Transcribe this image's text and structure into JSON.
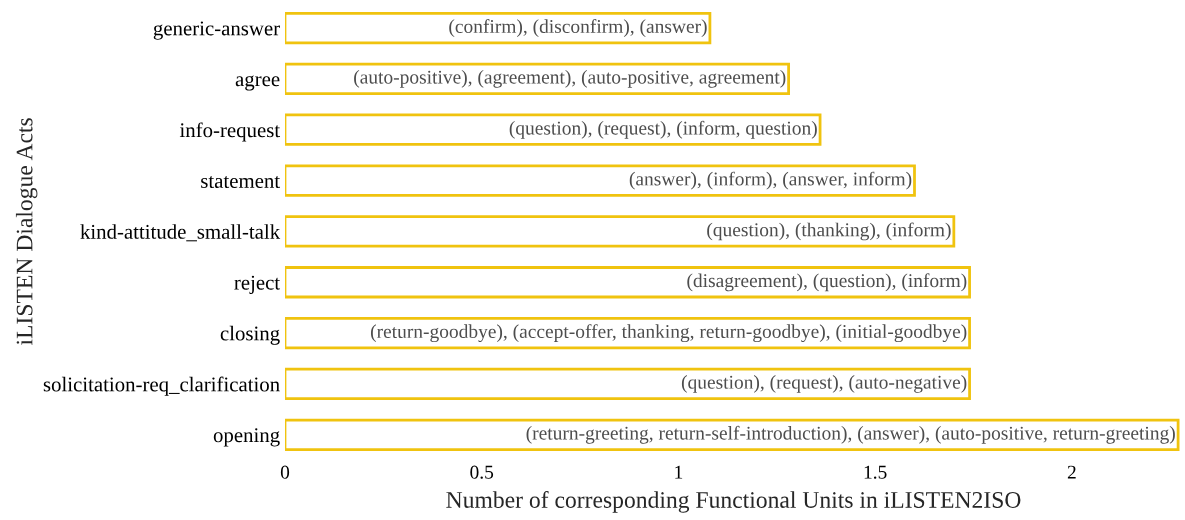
{
  "chart_data": {
    "type": "bar",
    "orientation": "horizontal",
    "xlabel": "Number of corresponding Functional Units in iLISTEN2ISO",
    "ylabel": "iLISTEN Dialogue Acts",
    "categories": [
      "generic-answer",
      "agree",
      "info-request",
      "statement",
      "kind-attitude_small-talk",
      "reject",
      "closing",
      "solicitation-req_clarification",
      "opening"
    ],
    "values": [
      1.08,
      1.28,
      1.36,
      1.6,
      1.7,
      1.74,
      1.74,
      1.74,
      2.27
    ],
    "value_labels": [
      "(confirm), (disconfirm), (answer)",
      "(auto-positive), (agreement), (auto-positive, agreement)",
      "(question), (request), (inform, question)",
      "(answer), (inform), (answer, inform)",
      "(question), (thanking), (inform)",
      "(disagreement), (question), (inform)",
      "(return-goodbye), (accept-offer, thanking, return-goodbye), (initial-goodbye)",
      "(question), (request), (auto-negative)",
      "(return-greeting, return-self-introduction), (answer), (auto-positive, return-greeting)"
    ],
    "color": "#f0c30f",
    "xlim": [
      0,
      2.28
    ],
    "xticks": [
      0,
      0.5,
      1,
      1.5,
      2
    ],
    "grid": false,
    "legend": false
  }
}
